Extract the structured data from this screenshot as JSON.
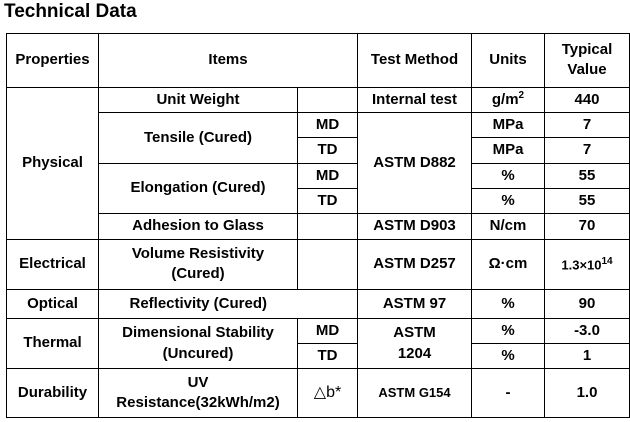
{
  "title": "Technical Data",
  "headers": {
    "properties": "Properties",
    "items": "Items",
    "test_method": "Test Method",
    "units": "Units",
    "typical_value": "Typical Value"
  },
  "physical": {
    "category": "Physical",
    "unit_weight": {
      "item": "Unit Weight",
      "method": "Internal test",
      "unit_base": "g/m",
      "unit_exp": "2",
      "value": "440"
    },
    "tensile": {
      "item": "Tensile (Cured)",
      "md": "MD",
      "td": "TD",
      "md_unit": "MPa",
      "td_unit": "MPa",
      "md_value": "7",
      "td_value": "7"
    },
    "method_d882": "ASTM D882",
    "elongation": {
      "item": "Elongation (Cured)",
      "md": "MD",
      "td": "TD",
      "md_unit": "%",
      "td_unit": "%",
      "md_value": "55",
      "td_value": "55"
    },
    "adhesion": {
      "item": "Adhesion to Glass",
      "method": "ASTM D903",
      "unit": "N/cm",
      "value": "70"
    }
  },
  "electrical": {
    "category": "Electrical",
    "item_line1": "Volume Resistivity",
    "item_line2": "(Cured)",
    "method": "ASTM D257",
    "unit": "Ω·cm",
    "value_base": "1.3×10",
    "value_exp": "14"
  },
  "optical": {
    "category": "Optical",
    "item": "Reflectivity (Cured)",
    "method": "ASTM 97",
    "unit": "%",
    "value": "90"
  },
  "thermal": {
    "category": "Thermal",
    "item_line1": "Dimensional Stability",
    "item_line2": "(Uncured)",
    "md": "MD",
    "td": "TD",
    "method_line1": "ASTM",
    "method_line2": "1204",
    "md_unit": "%",
    "td_unit": "%",
    "md_value": "-3.0",
    "td_value": "1"
  },
  "durability": {
    "category": "Durability",
    "item_line1": "UV",
    "item_line2": "Resistance(32kWh/m2)",
    "sub": "△b*",
    "method": "ASTM G154",
    "unit": "-",
    "value": "1.0"
  }
}
